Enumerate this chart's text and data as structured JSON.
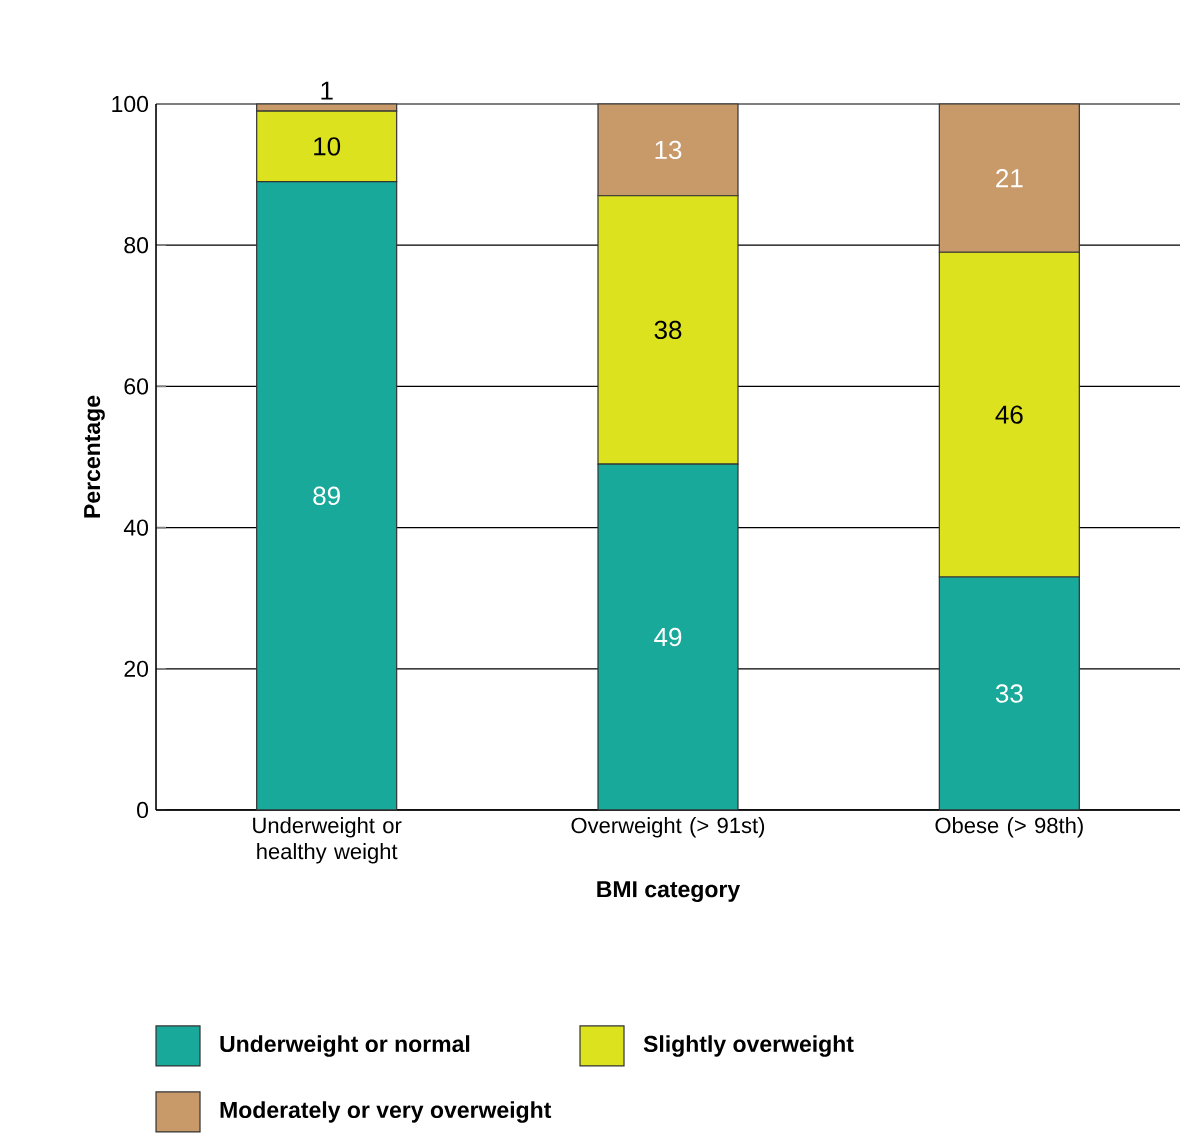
{
  "chart_data": {
    "type": "bar",
    "stacked": true,
    "xlabel": "BMI category",
    "ylabel": "Percentage",
    "categories": [
      "Underweight or healthy weight",
      "Overweight (> 91st)",
      "Obese (> 98th)"
    ],
    "series": [
      {
        "name": "Underweight or normal",
        "color": "#18a99a",
        "values": [
          89,
          49,
          33
        ]
      },
      {
        "name": "Slightly overweight",
        "color": "#dde21f",
        "values": [
          10,
          38,
          46
        ]
      },
      {
        "name": "Moderately or very overweight",
        "color": "#c89a6a",
        "values": [
          1,
          13,
          21
        ]
      }
    ],
    "ylim": [
      0,
      100
    ],
    "yticks": [
      0,
      20,
      40,
      60,
      80,
      100
    ],
    "grid": "y",
    "data_labels": true,
    "legend": "bottom"
  }
}
